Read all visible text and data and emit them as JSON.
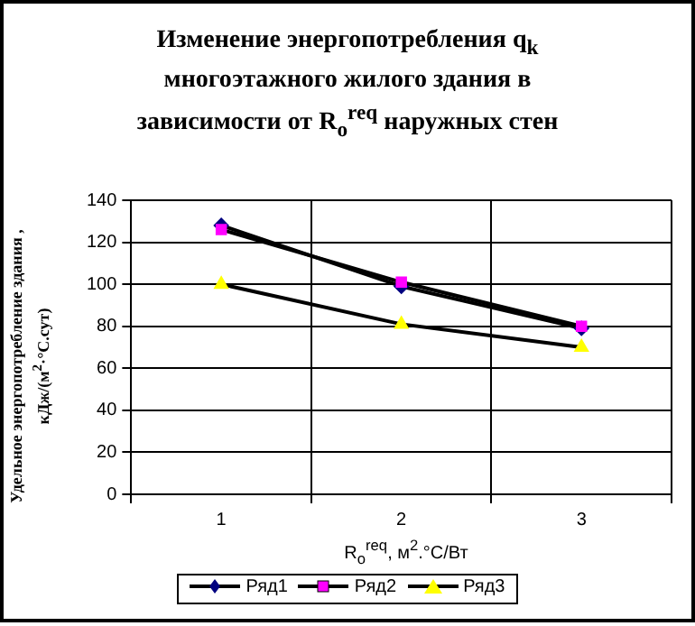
{
  "chart_data": {
    "type": "line",
    "title": "Изменение энергопотребления q$_{k}$ многоэтажного жилого здания в зависимости от R$_{o}$$^{req}$ наружных стен",
    "xlabel": "R$_{o}$$^{req}$, м$^{2}$.°С/Вт",
    "ylabel": "Удельное энергопотребление здания , кДж/(м$^{2}$·°С.сут)",
    "categories": [
      "1",
      "2",
      "3"
    ],
    "series": [
      {
        "name": "Ряд1",
        "color": "#000080",
        "marker": "diamond",
        "values": [
          128,
          99,
          79
        ]
      },
      {
        "name": "Ряд2",
        "color": "#ff00ff",
        "marker": "square",
        "values": [
          126,
          101,
          80
        ]
      },
      {
        "name": "Ряд3",
        "color": "#ffff00",
        "marker": "triangle",
        "values": [
          100,
          81,
          70
        ]
      }
    ],
    "ylim": [
      0,
      140
    ],
    "yticks": [
      0,
      20,
      40,
      60,
      80,
      100,
      120,
      140
    ],
    "grid": true,
    "legend": "bottom"
  }
}
